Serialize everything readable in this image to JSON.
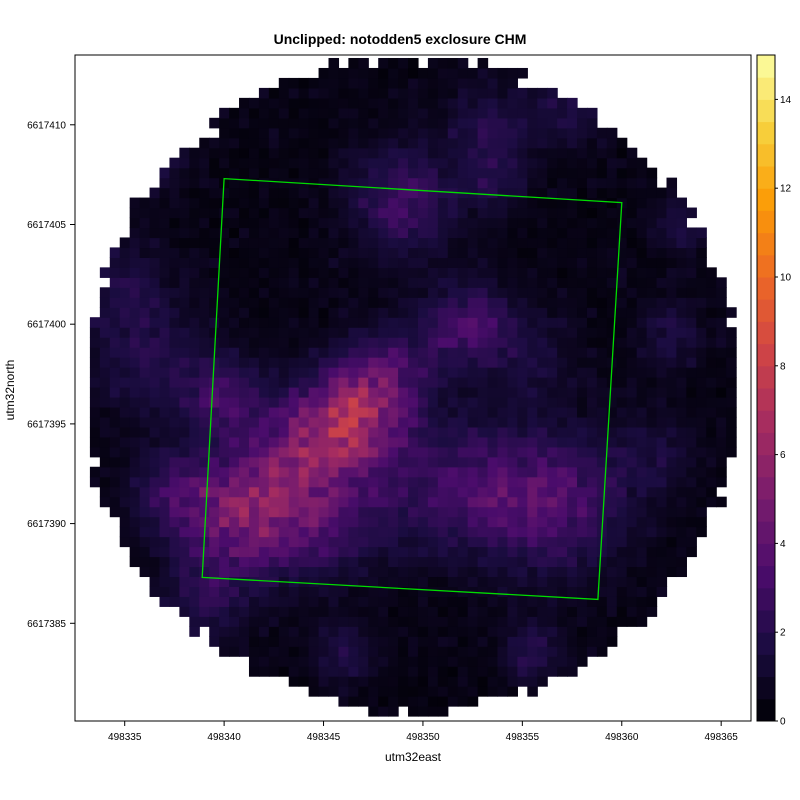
{
  "chart_data": {
    "type": "heatmap",
    "title": "Unclipped: notodden5 exclosure CHM",
    "xlabel": "utm32east",
    "ylabel": "utm32north",
    "xlim": [
      498332.5,
      498366.5
    ],
    "ylim": [
      6617380.1,
      6617413.5
    ],
    "x_ticks": [
      498335,
      498340,
      498345,
      498350,
      498355,
      498360,
      498365
    ],
    "y_ticks": [
      6617385,
      6617390,
      6617395,
      6617400,
      6617405,
      6617410
    ],
    "colorbar": {
      "min": 0,
      "max": 15,
      "ticks": [
        0,
        2,
        4,
        6,
        8,
        10,
        12,
        14
      ]
    },
    "colormap": [
      "#000004",
      "#1b0c41",
      "#4a0c6b",
      "#781c6d",
      "#a52c60",
      "#cf4446",
      "#ed6925",
      "#fb9b06",
      "#f7d13d",
      "#fcffa4"
    ],
    "raster_extent": {
      "x_center": 498349.4,
      "y_center": 6617396.9,
      "radius": 16.4,
      "cell_size": 0.5
    },
    "clip_polygon": {
      "color": "#00dd00",
      "points": [
        [
          498340.0,
          6617407.3
        ],
        [
          498360.0,
          6617406.1
        ],
        [
          498358.8,
          6617386.2
        ],
        [
          498338.9,
          6617387.3
        ]
      ]
    },
    "hotspots": [
      {
        "x": 498346.6,
        "y": 6617395.6,
        "value": 4.2,
        "r": 1.6
      },
      {
        "x": 498344.5,
        "y": 6617394.0,
        "value": 3.4,
        "r": 1.8
      },
      {
        "x": 498340.6,
        "y": 6617390.1,
        "value": 3.2,
        "r": 2.0
      },
      {
        "x": 498342.5,
        "y": 6617391.5,
        "value": 2.6,
        "r": 2.2
      },
      {
        "x": 498337.5,
        "y": 6617391.5,
        "value": 1.8,
        "r": 1.5
      },
      {
        "x": 498352.2,
        "y": 6617399.9,
        "value": 2.7,
        "r": 1.5
      },
      {
        "x": 498348.3,
        "y": 6617397.6,
        "value": 2.3,
        "r": 1.6
      },
      {
        "x": 498349.0,
        "y": 6617406.2,
        "value": 2.5,
        "r": 1.8
      },
      {
        "x": 498340.0,
        "y": 6617396.4,
        "value": 2.3,
        "r": 1.4
      },
      {
        "x": 498356.8,
        "y": 6617391.1,
        "value": 2.6,
        "r": 2.4
      },
      {
        "x": 498353.0,
        "y": 6617391.7,
        "value": 2.2,
        "r": 2.2
      },
      {
        "x": 498348.0,
        "y": 6617392.0,
        "value": 1.7,
        "r": 2.5
      },
      {
        "x": 498336.2,
        "y": 6617398.2,
        "value": 1.4,
        "r": 2.0
      },
      {
        "x": 498334.8,
        "y": 6617402.0,
        "value": 1.1,
        "r": 1.8
      },
      {
        "x": 498336.3,
        "y": 6617408.5,
        "value": 1.6,
        "r": 1.2
      },
      {
        "x": 498353.4,
        "y": 6617409.8,
        "value": 1.5,
        "r": 1.5
      },
      {
        "x": 498357.5,
        "y": 6617410.8,
        "value": 1.2,
        "r": 1.3
      },
      {
        "x": 498353.5,
        "y": 6617407.2,
        "value": 1.4,
        "r": 1.0
      },
      {
        "x": 498355.5,
        "y": 6617383.5,
        "value": 1.6,
        "r": 1.0
      },
      {
        "x": 498346.0,
        "y": 6617383.5,
        "value": 1.4,
        "r": 1.1
      },
      {
        "x": 498339.0,
        "y": 6617386.0,
        "value": 1.3,
        "r": 1.5
      },
      {
        "x": 498359.8,
        "y": 6617381.0,
        "value": 1.6,
        "r": 1.0
      },
      {
        "x": 498362.5,
        "y": 6617399.5,
        "value": 1.1,
        "r": 1.2
      },
      {
        "x": 498363.0,
        "y": 6617405.0,
        "value": 1.2,
        "r": 1.0
      },
      {
        "x": 498361.5,
        "y": 6617393.5,
        "value": 0.9,
        "r": 1.5
      },
      {
        "x": 498355.5,
        "y": 6617398.5,
        "value": 1.0,
        "r": 1.6
      },
      {
        "x": 498345.0,
        "y": 6617389.5,
        "value": 1.1,
        "r": 1.5
      }
    ]
  }
}
